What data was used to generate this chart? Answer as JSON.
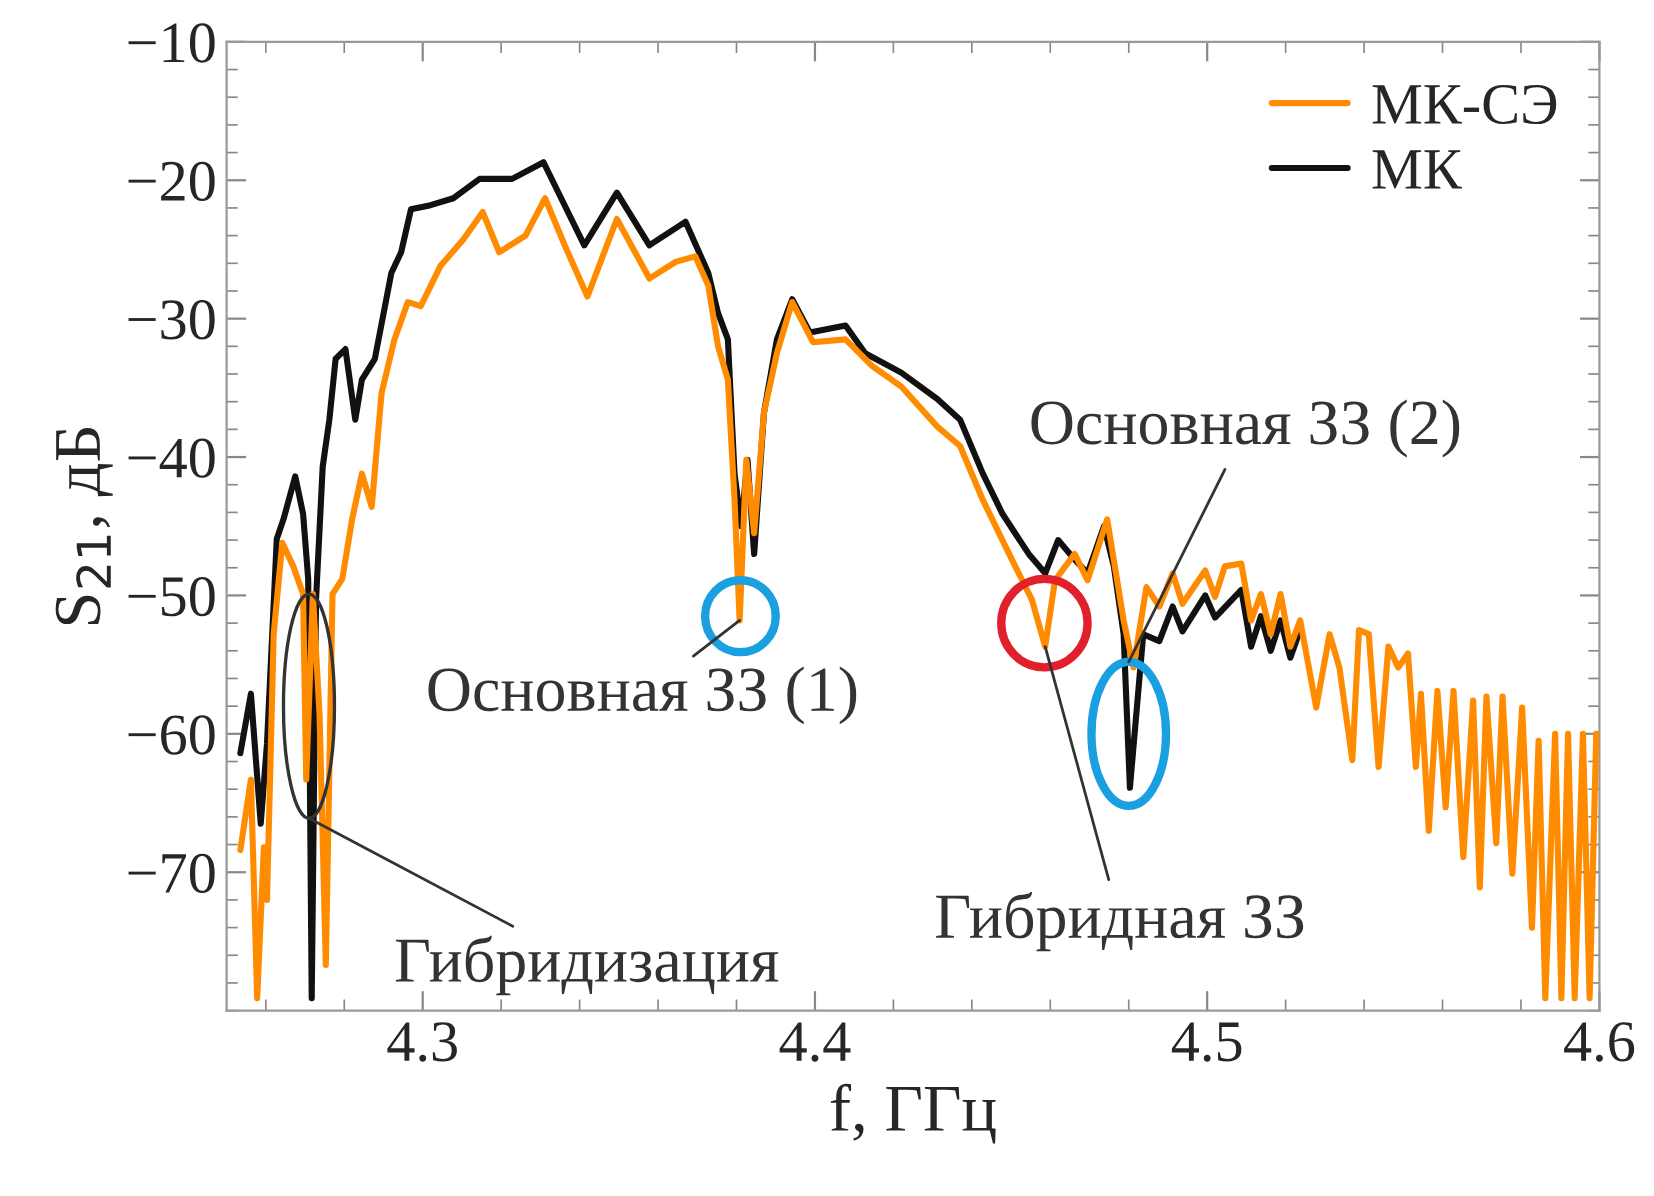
{
  "chart_data": {
    "type": "line",
    "xlabel": "f, ГГц",
    "ylabel": "S$_{21}$, дБ",
    "xlim": [
      4.25,
      4.6
    ],
    "ylim": [
      -80,
      -10
    ],
    "xticks": [
      4.3,
      4.4,
      4.5,
      4.6
    ],
    "yticks": [
      -10,
      -20,
      -30,
      -40,
      -50,
      -60,
      -70
    ],
    "legend": "top right",
    "grid": false,
    "marker": "none",
    "line_style": "solid",
    "series": [
      {
        "name": "МК-СЭ",
        "color": "#ff8c00",
        "x": [
          4.2535,
          4.2562,
          4.2578,
          4.2595,
          4.2603,
          4.262,
          4.2642,
          4.267,
          4.2695,
          4.2703,
          4.272,
          4.2737,
          4.2753,
          4.277,
          4.2795,
          4.282,
          4.2845,
          4.287,
          4.2895,
          4.2928,
          4.2962,
          4.2995,
          4.3045,
          4.3103,
          4.3153,
          4.3195,
          4.3262,
          4.3312,
          4.3362,
          4.342,
          4.3495,
          4.3578,
          4.3645,
          4.3695,
          4.3728,
          4.3753,
          4.3778,
          4.3795,
          4.3808,
          4.3825,
          4.3845,
          4.387,
          4.3903,
          4.3942,
          4.3995,
          4.4078,
          4.4145,
          4.422,
          4.4312,
          4.437,
          4.4428,
          4.4495,
          4.4553,
          4.4587,
          4.4612,
          4.4662,
          4.4695,
          4.4745,
          4.4787,
          4.4812,
          4.4845,
          4.4878,
          4.4912,
          4.4937,
          4.4995,
          4.502,
          4.5045,
          4.5087,
          4.5112,
          4.5137,
          4.5162,
          4.5187,
          4.5212,
          4.5237,
          4.5278,
          4.5312,
          4.5337,
          4.537,
          4.5387,
          4.5412,
          4.5437,
          4.5462,
          4.5487,
          4.5512,
          4.5532,
          4.5545,
          4.5565,
          4.5587,
          4.5608,
          4.5628,
          4.5653,
          4.5678,
          4.5695,
          4.5712,
          4.5737,
          4.5753,
          4.5778,
          4.5803,
          4.5828,
          4.5845,
          4.5862,
          4.5887,
          4.5903,
          4.592,
          4.5937,
          4.5958,
          4.5975,
          4.5992
        ],
        "values": [
          -68.4,
          -63.3,
          -79.1,
          -68.2,
          -72.0,
          -52.8,
          -46.2,
          -47.9,
          -49.9,
          -63.3,
          -49.9,
          -58.6,
          -76.7,
          -49.9,
          -48.8,
          -44.5,
          -41.2,
          -43.6,
          -35.4,
          -31.5,
          -28.8,
          -29.1,
          -26.2,
          -24.3,
          -22.3,
          -25.2,
          -24.0,
          -21.3,
          -24.7,
          -28.4,
          -22.8,
          -27.1,
          -25.9,
          -25.5,
          -27.6,
          -32.0,
          -34.4,
          -43.1,
          -51.8,
          -40.2,
          -45.5,
          -36.8,
          -32.5,
          -28.8,
          -31.7,
          -31.5,
          -33.4,
          -34.9,
          -37.8,
          -39.2,
          -43.1,
          -47.0,
          -50.3,
          -53.7,
          -48.9,
          -47.0,
          -48.9,
          -44.5,
          -51.8,
          -55.2,
          -49.4,
          -50.8,
          -48.4,
          -50.6,
          -48.2,
          -50.1,
          -47.9,
          -47.7,
          -51.8,
          -49.9,
          -52.8,
          -49.9,
          -53.7,
          -51.8,
          -58.1,
          -52.8,
          -55.2,
          -61.9,
          -52.5,
          -52.8,
          -62.4,
          -53.7,
          -55.2,
          -54.2,
          -62.4,
          -57.1,
          -67.0,
          -56.9,
          -65.3,
          -56.9,
          -68.9,
          -57.6,
          -71.1,
          -57.3,
          -67.9,
          -57.3,
          -70.1,
          -58.1,
          -74.0,
          -60.5,
          -79.1,
          -60.0,
          -79.1,
          -60.0,
          -79.1,
          -60.0,
          -79.1,
          -60.0
        ]
      },
      {
        "name": "МК",
        "color": "#111111",
        "x": [
          4.2535,
          4.2562,
          4.2587,
          4.2603,
          4.2628,
          4.2645,
          4.2675,
          4.2695,
          4.2708,
          4.2717,
          4.2728,
          4.2745,
          4.2762,
          4.2778,
          4.2803,
          4.2828,
          4.2845,
          4.2878,
          4.292,
          4.2945,
          4.297,
          4.302,
          4.3078,
          4.3145,
          4.3228,
          4.3308,
          4.3353,
          4.3412,
          4.3495,
          4.3578,
          4.367,
          4.3728,
          4.3753,
          4.3778,
          4.3795,
          4.3812,
          4.3828,
          4.3845,
          4.387,
          4.3903,
          4.3942,
          4.3987,
          4.4078,
          4.4128,
          4.422,
          4.4312,
          4.437,
          4.4428,
          4.4478,
          4.4545,
          4.4587,
          4.462,
          4.4662,
          4.4695,
          4.4737,
          4.4762,
          4.4787,
          4.4803,
          4.4837,
          4.4878,
          4.4912,
          4.4937,
          4.4995,
          4.502,
          4.5087,
          4.5112,
          4.5137,
          4.5162,
          4.5187,
          4.5212,
          4.5237
        ],
        "values": [
          -61.4,
          -57.1,
          -66.5,
          -60.7,
          -45.9,
          -44.5,
          -41.4,
          -44.1,
          -48.8,
          -79.1,
          -50.3,
          -40.7,
          -37.3,
          -32.9,
          -32.2,
          -37.3,
          -34.4,
          -32.9,
          -26.7,
          -25.2,
          -22.1,
          -21.8,
          -21.3,
          -19.9,
          -19.9,
          -18.7,
          -21.3,
          -24.7,
          -20.9,
          -24.7,
          -23.0,
          -26.7,
          -29.6,
          -31.5,
          -41.2,
          -45.0,
          -40.2,
          -47.0,
          -36.8,
          -31.5,
          -28.6,
          -31.0,
          -30.5,
          -32.5,
          -33.9,
          -35.8,
          -37.3,
          -41.2,
          -44.1,
          -47.0,
          -48.4,
          -46.0,
          -47.4,
          -48.4,
          -45.0,
          -47.9,
          -52.8,
          -63.9,
          -52.8,
          -53.3,
          -50.8,
          -52.6,
          -50.0,
          -51.6,
          -49.6,
          -53.7,
          -51.5,
          -54.0,
          -51.8,
          -54.5,
          -52.5
        ]
      }
    ],
    "annotations": [
      {
        "text": "Основная ЗЗ (1)",
        "x": 4.3808,
        "y": -51.8
      },
      {
        "text": "Гибридная ЗЗ",
        "x": 4.4587,
        "y": -53.7
      },
      {
        "text": "Основная ЗЗ (2)",
        "x": 4.48,
        "y": -54.8
      },
      {
        "text": "Гибридизация",
        "x": 4.271,
        "y": -66.1
      }
    ]
  }
}
